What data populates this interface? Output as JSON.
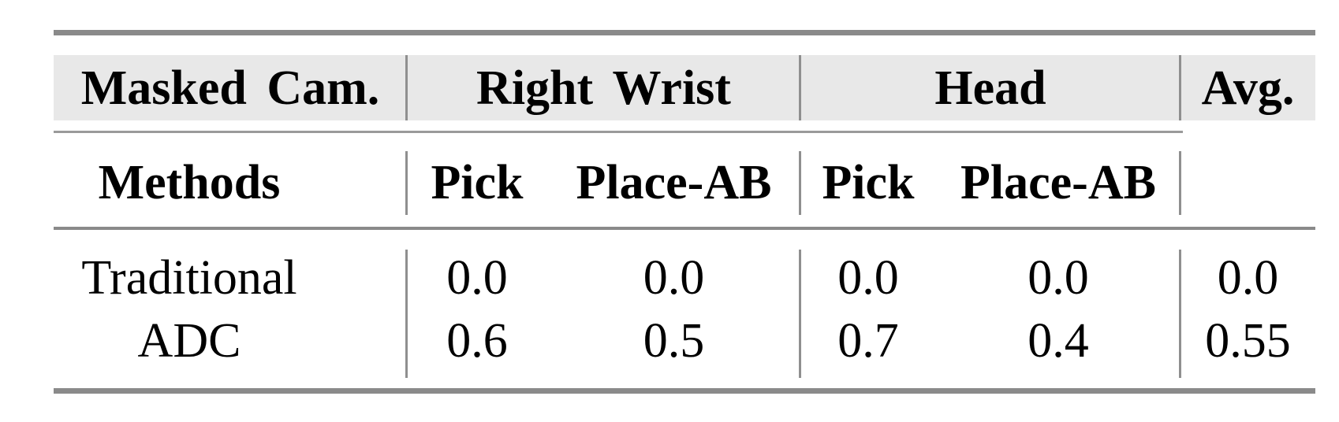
{
  "table": {
    "group_header": {
      "masked_cam": "Masked Cam.",
      "right_wrist": "Right Wrist",
      "head": "Head",
      "avg": "Avg."
    },
    "sub_header": {
      "methods": "Methods",
      "cols": [
        "Pick",
        "Place-AB",
        "Pick",
        "Place-AB"
      ]
    },
    "rows": [
      {
        "method": "Traditional",
        "values": [
          "0.0",
          "0.0",
          "0.0",
          "0.0",
          "0.0"
        ]
      },
      {
        "method": "ADC",
        "values": [
          "0.6",
          "0.5",
          "0.7",
          "0.4",
          "0.55"
        ]
      }
    ]
  },
  "colors": {
    "header_band_bg": "#e8e8e8",
    "thick_rule": "#8a8a8a",
    "thin_rule": "#9a9a9a",
    "divider": "#8f8f8f",
    "text": "#000000",
    "page_bg": "#ffffff"
  }
}
